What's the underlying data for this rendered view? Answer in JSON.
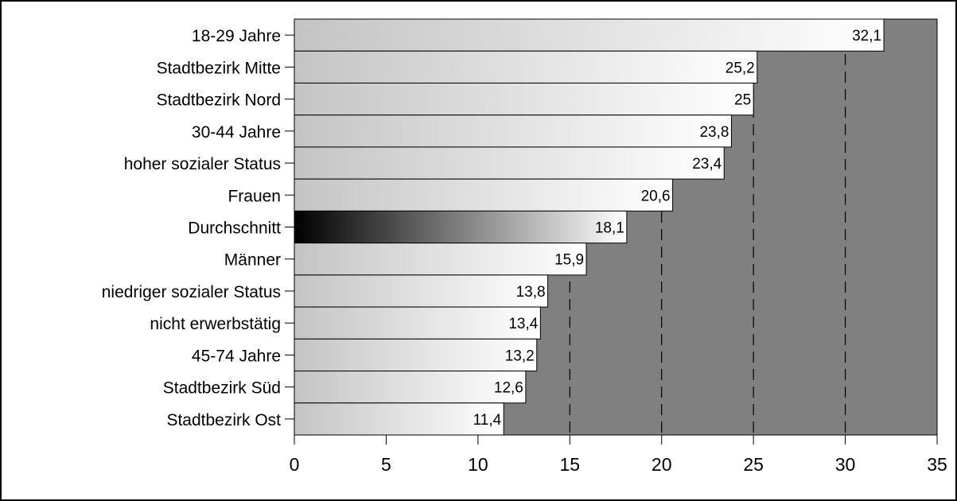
{
  "chart_data": {
    "type": "bar",
    "orientation": "horizontal",
    "categories": [
      "18-29 Jahre",
      "Stadtbezirk Mitte",
      "Stadtbezirk Nord",
      "30-44 Jahre",
      "hoher sozialer Status",
      "Frauen",
      "Durchschnitt",
      "Männer",
      "niedriger sozialer Status",
      "nicht erwerbstätig",
      "45-74 Jahre",
      "Stadtbezirk Süd",
      "Stadtbezirk Ost"
    ],
    "values": [
      32.1,
      25.2,
      25,
      23.8,
      23.4,
      20.6,
      18.1,
      15.9,
      13.8,
      13.4,
      13.2,
      12.6,
      11.4
    ],
    "value_labels": [
      "32,1",
      "25,2",
      "25",
      "23,8",
      "23,4",
      "20,6",
      "18,1",
      "15,9",
      "13,8",
      "13,4",
      "13,2",
      "12,6",
      "11,4"
    ],
    "highlighted_category": "Durchschnitt",
    "xlim": [
      0,
      35
    ],
    "xticks": [
      0,
      5,
      10,
      15,
      20,
      25,
      30,
      35
    ],
    "xtick_labels": [
      "0",
      "5",
      "10",
      "15",
      "20",
      "25",
      "30",
      "35"
    ],
    "gridlines": [
      15,
      20,
      25,
      30
    ],
    "grid": "dashed vertical",
    "title": "",
    "xlabel": "",
    "ylabel": "",
    "colors": {
      "plot_background": "#808080",
      "bar_gradient_start": "#c4c4c4",
      "bar_gradient_end": "#ffffff",
      "highlight_gradient_start": "#000000",
      "highlight_gradient_end": "#ffffff",
      "bar_outline": "#000000"
    }
  }
}
